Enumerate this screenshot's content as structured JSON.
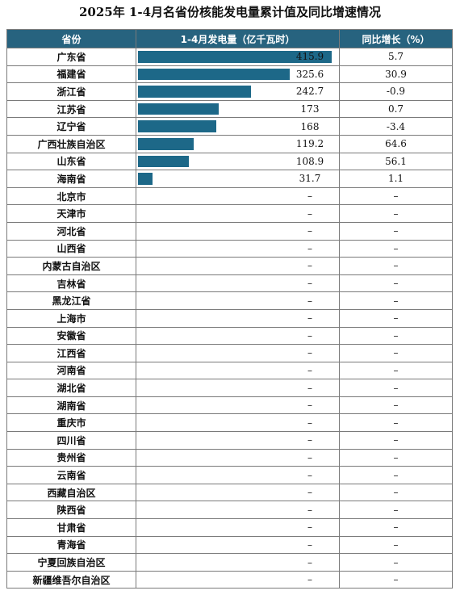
{
  "title": "2025年 1-4月名省份核能发电量累计值及同比增速情况",
  "headers": {
    "province": "省份",
    "value": "1-4月发电量（亿千瓦时）",
    "yoy": "同比增长（%）"
  },
  "colors": {
    "header_bg": "#27637f",
    "bar": "#1d6888"
  },
  "chart_data": {
    "type": "table",
    "title": "2025年 1-4月名省份核能发电量累计值及同比增速情况",
    "xmax": 430,
    "rows": [
      {
        "province": "广东省",
        "value": "415.9",
        "num": 415.9,
        "yoy": "5.7"
      },
      {
        "province": "福建省",
        "value": "325.6",
        "num": 325.6,
        "yoy": "30.9"
      },
      {
        "province": "浙江省",
        "value": "242.7",
        "num": 242.7,
        "yoy": "-0.9"
      },
      {
        "province": "江苏省",
        "value": "173",
        "num": 173,
        "yoy": "0.7"
      },
      {
        "province": "辽宁省",
        "value": "168",
        "num": 168,
        "yoy": "-3.4"
      },
      {
        "province": "广西壮族自治区",
        "value": "119.2",
        "num": 119.2,
        "yoy": "64.6"
      },
      {
        "province": "山东省",
        "value": "108.9",
        "num": 108.9,
        "yoy": "56.1"
      },
      {
        "province": "海南省",
        "value": "31.7",
        "num": 31.7,
        "yoy": "1.1"
      },
      {
        "province": "北京市",
        "value": "–",
        "num": null,
        "yoy": "–"
      },
      {
        "province": "天津市",
        "value": "–",
        "num": null,
        "yoy": "–"
      },
      {
        "province": "河北省",
        "value": "–",
        "num": null,
        "yoy": "–"
      },
      {
        "province": "山西省",
        "value": "–",
        "num": null,
        "yoy": "–"
      },
      {
        "province": "内蒙古自治区",
        "value": "–",
        "num": null,
        "yoy": "–"
      },
      {
        "province": "吉林省",
        "value": "–",
        "num": null,
        "yoy": "–"
      },
      {
        "province": "黑龙江省",
        "value": "–",
        "num": null,
        "yoy": "–"
      },
      {
        "province": "上海市",
        "value": "–",
        "num": null,
        "yoy": "–"
      },
      {
        "province": "安徽省",
        "value": "–",
        "num": null,
        "yoy": "–"
      },
      {
        "province": "江西省",
        "value": "–",
        "num": null,
        "yoy": "–"
      },
      {
        "province": "河南省",
        "value": "–",
        "num": null,
        "yoy": "–"
      },
      {
        "province": "湖北省",
        "value": "–",
        "num": null,
        "yoy": "–"
      },
      {
        "province": "湖南省",
        "value": "–",
        "num": null,
        "yoy": "–"
      },
      {
        "province": "重庆市",
        "value": "–",
        "num": null,
        "yoy": "–"
      },
      {
        "province": "四川省",
        "value": "–",
        "num": null,
        "yoy": "–"
      },
      {
        "province": "贵州省",
        "value": "–",
        "num": null,
        "yoy": "–"
      },
      {
        "province": "云南省",
        "value": "–",
        "num": null,
        "yoy": "–"
      },
      {
        "province": "西藏自治区",
        "value": "–",
        "num": null,
        "yoy": "–"
      },
      {
        "province": "陕西省",
        "value": "–",
        "num": null,
        "yoy": "–"
      },
      {
        "province": "甘肃省",
        "value": "–",
        "num": null,
        "yoy": "–"
      },
      {
        "province": "青海省",
        "value": "–",
        "num": null,
        "yoy": "–"
      },
      {
        "province": "宁夏回族自治区",
        "value": "–",
        "num": null,
        "yoy": "–"
      },
      {
        "province": "新疆维吾尔自治区",
        "value": "–",
        "num": null,
        "yoy": "–"
      }
    ]
  }
}
